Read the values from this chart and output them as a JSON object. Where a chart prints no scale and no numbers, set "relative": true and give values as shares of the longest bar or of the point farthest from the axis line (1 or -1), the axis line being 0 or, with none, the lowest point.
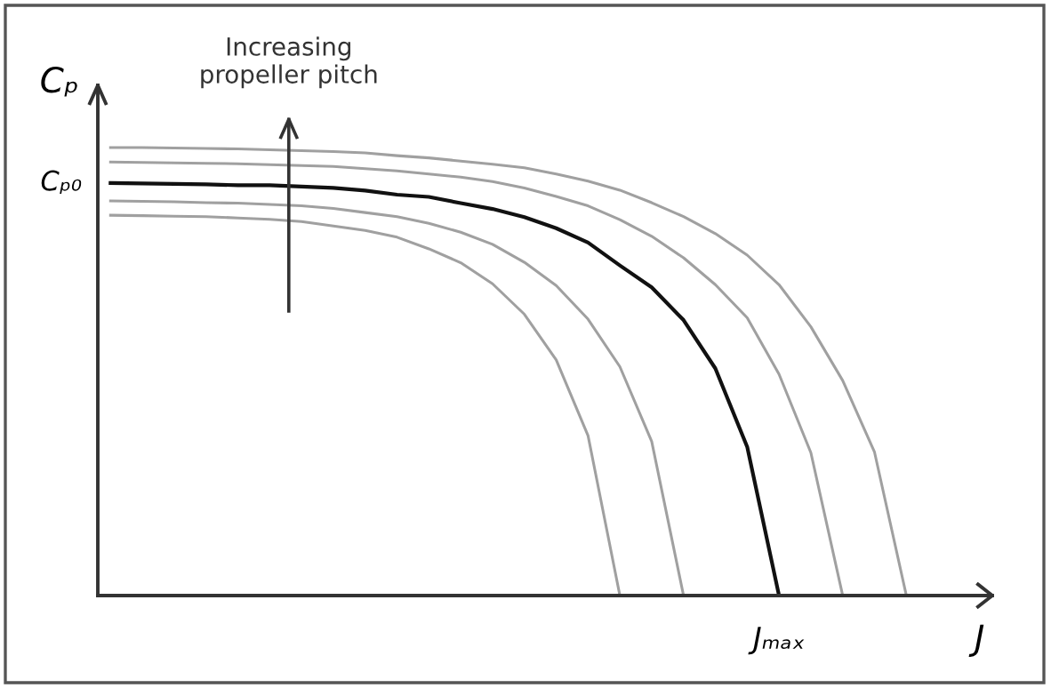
{
  "chart_data": {
    "type": "line",
    "relative": true,
    "xlabel": "J",
    "ylabel": "Cₚ",
    "line_style": "solid",
    "categories": [
      null,
      null,
      null,
      null,
      null,
      null,
      null,
      null,
      null,
      null,
      null,
      null,
      null,
      null,
      null,
      null,
      null,
      null,
      null,
      null,
      null,
      null,
      null,
      null,
      null,
      null
    ],
    "annotations": [
      "Cₚ₀",
      "Jₘₐₓ",
      "Increasing\npropeller pitch"
    ],
    "series": [
      {
        "color": "#a0a0a0",
        "values": [
          1,
          1,
          0.999,
          0.998,
          0.997,
          0.995,
          0.993,
          0.991,
          0.988,
          0.982,
          0.977,
          0.97,
          0.963,
          0.955,
          0.941,
          0.925,
          0.905,
          0.877,
          0.846,
          0.808,
          0.76,
          0.694,
          0.6,
          0.48,
          0.32,
          0
        ]
      },
      {
        "color": "#a0a0a0",
        "values": [
          0.968,
          0.967,
          0.966,
          0.965,
          0.964,
          0.962,
          0.96,
          0.958,
          0.953,
          0.948,
          0.941,
          0.934,
          0.924,
          0.91,
          0.891,
          0.87,
          0.839,
          0.802,
          0.754,
          0.694,
          0.62,
          0.494,
          0.319,
          0,
          null,
          null
        ]
      },
      {
        "color": "#111111",
        "values": [
          0.921,
          0.92,
          0.919,
          0.918,
          0.916,
          0.916,
          0.913,
          0.91,
          0.904,
          0.895,
          0.89,
          0.876,
          0.863,
          0.845,
          0.82,
          0.788,
          0.737,
          0.688,
          0.615,
          0.507,
          0.332,
          0,
          null,
          null,
          null,
          null
        ]
      },
      {
        "color": "#a0a0a0",
        "values": [
          0.881,
          0.88,
          0.879,
          0.877,
          0.876,
          0.873,
          0.87,
          0.864,
          0.855,
          0.846,
          0.831,
          0.811,
          0.784,
          0.744,
          0.692,
          0.617,
          0.511,
          0.344,
          0,
          null,
          null,
          null,
          null,
          null,
          null,
          null
        ]
      },
      {
        "color": "#a0a0a0",
        "values": [
          0.849,
          0.848,
          0.847,
          0.846,
          0.843,
          0.84,
          0.835,
          0.825,
          0.815,
          0.8,
          0.774,
          0.743,
          0.696,
          0.628,
          0.526,
          0.357,
          0,
          null,
          null,
          null,
          null,
          null,
          null,
          null,
          null,
          null
        ]
      }
    ]
  }
}
